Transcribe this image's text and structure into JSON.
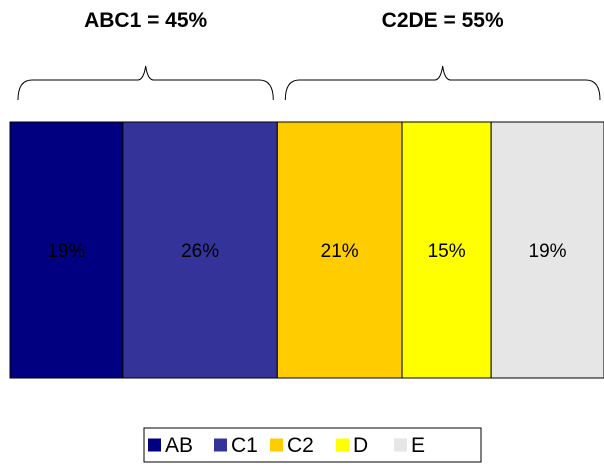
{
  "chart_data": {
    "type": "bar",
    "orientation": "horizontal-stacked-100",
    "categories": [
      "AB",
      "C1",
      "C2",
      "D",
      "E"
    ],
    "values": [
      19,
      26,
      21,
      15,
      19
    ],
    "labels": [
      "19%",
      "26%",
      "21%",
      "15%",
      "19%"
    ],
    "colors": [
      "#000080",
      "#333399",
      "#FFCC00",
      "#FFFF00",
      "#E6E6E6"
    ],
    "label_colors": [
      "#FFFFFF",
      "#FFFFFF",
      "#000000",
      "#000000",
      "#000000"
    ],
    "groups": [
      {
        "label": "ABC1 = 45%",
        "categories": [
          "AB",
          "C1"
        ],
        "brace": true
      },
      {
        "label": "C2DE = 55%",
        "categories": [
          "C2",
          "D",
          "E"
        ],
        "brace": true
      }
    ],
    "legend": {
      "position": "bottom",
      "entries": [
        "AB",
        "C1",
        "C2",
        "D",
        "E"
      ]
    },
    "grid": false,
    "title": "",
    "xlabel": "",
    "ylabel": ""
  }
}
